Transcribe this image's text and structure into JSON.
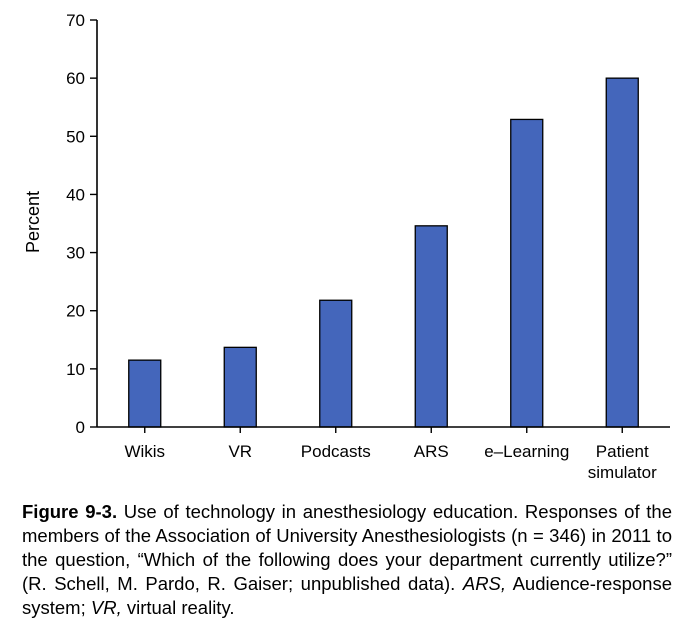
{
  "chart_data": {
    "type": "bar",
    "categories": [
      "Wikis",
      "VR",
      "Podcasts",
      "ARS",
      "e–Learning",
      "Patient simulator"
    ],
    "category_lines": [
      [
        "Wikis"
      ],
      [
        "VR"
      ],
      [
        "Podcasts"
      ],
      [
        "ARS"
      ],
      [
        "e–Learning"
      ],
      [
        "Patient",
        "simulator"
      ]
    ],
    "values": [
      11.5,
      13.7,
      21.8,
      34.6,
      52.9,
      60
    ],
    "title": "",
    "xlabel": "",
    "ylabel": "Percent",
    "ylim": [
      0,
      70
    ],
    "yticks": [
      0,
      10,
      20,
      30,
      40,
      50,
      60,
      70
    ],
    "grid": false,
    "bar_color": "#4466bb"
  },
  "caption": {
    "label": "Figure 9-3.",
    "text": "Use of technology in anesthesiology education. Responses of the members of the Association of University Anesthesiologists (n = 346) in 2011 to the question, “Which of the following does your department currently utilize?” (R. Schell, M. Pardo, R. Gaiser; unpublished data).",
    "abbrev_1_term": "ARS,",
    "abbrev_1_def": "Audience-response system;",
    "abbrev_2_term": "VR,",
    "abbrev_2_def": "virtual reality."
  }
}
